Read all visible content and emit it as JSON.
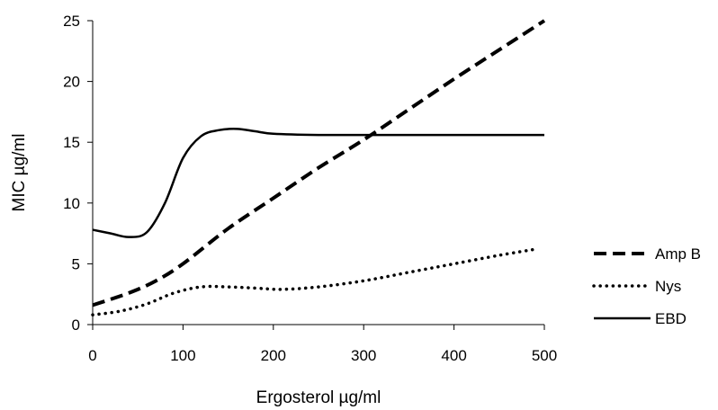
{
  "chart_data": {
    "type": "line",
    "xlabel": "Ergosterol µg/ml",
    "ylabel": "MIC µg/ml",
    "xlim": [
      0,
      500
    ],
    "ylim": [
      0,
      25
    ],
    "xticks": [
      "0",
      "100",
      "200",
      "300",
      "400",
      "500"
    ],
    "yticks": [
      "0",
      "5",
      "10",
      "15",
      "20",
      "25"
    ],
    "grid": false,
    "legend_position": "right",
    "series": [
      {
        "name": "Amp B",
        "style": "dashed",
        "color": "#000000",
        "x": [
          0,
          40,
          70,
          100,
          150,
          200,
          250,
          300,
          350,
          400,
          450,
          500
        ],
        "y": [
          1.6,
          2.6,
          3.6,
          5.0,
          7.9,
          10.4,
          12.9,
          15.2,
          17.7,
          20.2,
          22.6,
          25.0
        ]
      },
      {
        "name": "Nys",
        "style": "dotted",
        "color": "#000000",
        "x": [
          0,
          30,
          60,
          90,
          120,
          150,
          180,
          210,
          250,
          300,
          350,
          400,
          450,
          490
        ],
        "y": [
          0.8,
          1.1,
          1.7,
          2.6,
          3.1,
          3.1,
          3.0,
          2.9,
          3.1,
          3.6,
          4.3,
          5.0,
          5.7,
          6.2
        ]
      },
      {
        "name": "EBD",
        "style": "solid",
        "color": "#000000",
        "x": [
          0,
          20,
          40,
          60,
          80,
          100,
          120,
          140,
          160,
          180,
          200,
          250,
          300,
          350,
          400,
          450,
          500
        ],
        "y": [
          7.8,
          7.5,
          7.2,
          7.6,
          10.0,
          13.7,
          15.5,
          16.0,
          16.1,
          15.9,
          15.7,
          15.6,
          15.6,
          15.6,
          15.6,
          15.6,
          15.6
        ]
      }
    ]
  }
}
